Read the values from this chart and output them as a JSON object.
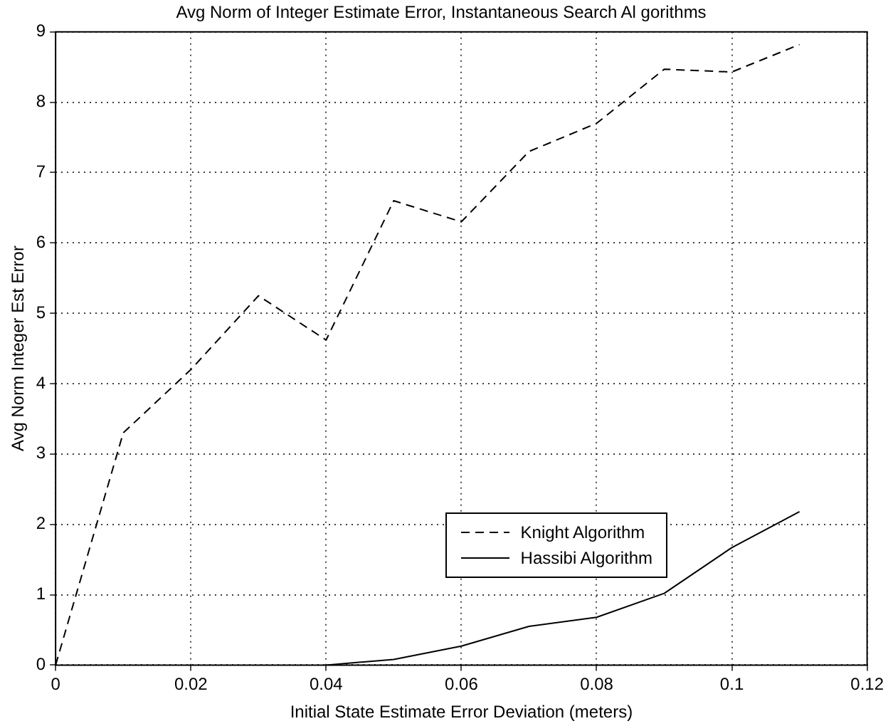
{
  "chart_data": {
    "type": "line",
    "title": "Avg Norm of Integer Estimate Error, Instantaneous Search Al gorithms",
    "xlabel": "Initial State Estimate Error Deviation (meters)",
    "ylabel": "Avg Norm Integer Est Error",
    "x": [
      0,
      0.01,
      0.02,
      0.03,
      0.04,
      0.05,
      0.06,
      0.07,
      0.08,
      0.09,
      0.1,
      0.11
    ],
    "series": [
      {
        "name": "Knight Algorithm",
        "color": "#000000",
        "line_style": "dashed",
        "values": [
          0,
          3.3,
          4.2,
          5.25,
          4.62,
          6.6,
          6.3,
          7.3,
          7.7,
          8.47,
          8.43,
          8.82
        ]
      },
      {
        "name": "Hassibi Algorithm",
        "color": "#000000",
        "line_style": "solid",
        "values": [
          null,
          null,
          null,
          null,
          0,
          0.08,
          0.27,
          0.55,
          0.68,
          1.02,
          1.67,
          2.18
        ]
      }
    ],
    "xlim": [
      0,
      0.12
    ],
    "xticks": [
      0,
      0.02,
      0.04,
      0.06,
      0.08,
      0.1,
      0.12
    ],
    "ylim": [
      0,
      9
    ],
    "yticks": [
      0,
      1,
      2,
      3,
      4,
      5,
      6,
      7,
      8,
      9
    ],
    "grid": true,
    "legend": "right",
    "marker": "none"
  }
}
